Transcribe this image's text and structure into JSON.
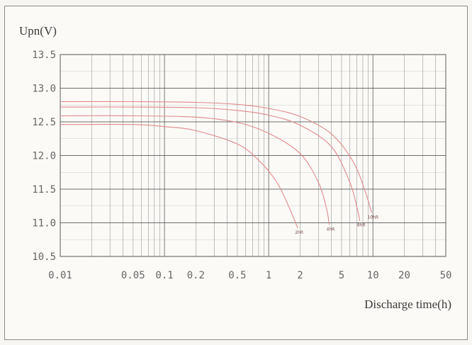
{
  "chart_data": {
    "type": "line",
    "title": "",
    "ylabel": "Upn(V)",
    "xlabel": "Discharge time(h)",
    "xscale": "log",
    "xlim": [
      0.01,
      50
    ],
    "ylim": [
      10.5,
      13.5
    ],
    "xticks": [
      {
        "value": 0.01,
        "label": "0.01"
      },
      {
        "value": 0.05,
        "label": "0.05"
      },
      {
        "value": 0.1,
        "label": "0.1"
      },
      {
        "value": 0.2,
        "label": "0.2"
      },
      {
        "value": 0.5,
        "label": "0.5"
      },
      {
        "value": 1,
        "label": "1"
      },
      {
        "value": 2,
        "label": "2"
      },
      {
        "value": 5,
        "label": "5"
      },
      {
        "value": 10,
        "label": "10"
      },
      {
        "value": 20,
        "label": "20"
      },
      {
        "value": 50,
        "label": "50"
      }
    ],
    "yticks": [
      {
        "value": 13.5,
        "label": "13.5"
      },
      {
        "value": 13.0,
        "label": "13.0"
      },
      {
        "value": 12.5,
        "label": "12.5"
      },
      {
        "value": 12.0,
        "label": "12.0"
      },
      {
        "value": 11.5,
        "label": "11.5"
      },
      {
        "value": 11.0,
        "label": "11.0"
      },
      {
        "value": 10.5,
        "label": "10.5"
      }
    ],
    "grid": true,
    "line_color": "#e08a8a",
    "grid_color": "#555555",
    "series": [
      {
        "name": "2hR",
        "points": [
          [
            0.01,
            12.46
          ],
          [
            0.05,
            12.46
          ],
          [
            0.1,
            12.43
          ],
          [
            0.2,
            12.37
          ],
          [
            0.5,
            12.17
          ],
          [
            0.8,
            11.93
          ],
          [
            1.2,
            11.6
          ],
          [
            1.6,
            11.2
          ],
          [
            1.9,
            10.92
          ]
        ]
      },
      {
        "name": "4hR",
        "points": [
          [
            0.01,
            12.59
          ],
          [
            0.05,
            12.59
          ],
          [
            0.2,
            12.57
          ],
          [
            0.5,
            12.49
          ],
          [
            1,
            12.33
          ],
          [
            2,
            12.03
          ],
          [
            3,
            11.6
          ],
          [
            3.6,
            11.2
          ],
          [
            3.8,
            10.97
          ]
        ]
      },
      {
        "name": "8hR",
        "points": [
          [
            0.01,
            12.72
          ],
          [
            0.05,
            12.72
          ],
          [
            0.2,
            12.71
          ],
          [
            0.5,
            12.67
          ],
          [
            1,
            12.6
          ],
          [
            2,
            12.45
          ],
          [
            4,
            12.13
          ],
          [
            6,
            11.6
          ],
          [
            7.1,
            11.2
          ],
          [
            7.5,
            11.03
          ]
        ]
      },
      {
        "name": "10hR",
        "points": [
          [
            0.01,
            12.8
          ],
          [
            0.05,
            12.8
          ],
          [
            0.2,
            12.79
          ],
          [
            0.5,
            12.76
          ],
          [
            1,
            12.7
          ],
          [
            2,
            12.58
          ],
          [
            4,
            12.32
          ],
          [
            6.5,
            11.9
          ],
          [
            8.5,
            11.45
          ],
          [
            9.7,
            11.15
          ]
        ]
      }
    ]
  }
}
